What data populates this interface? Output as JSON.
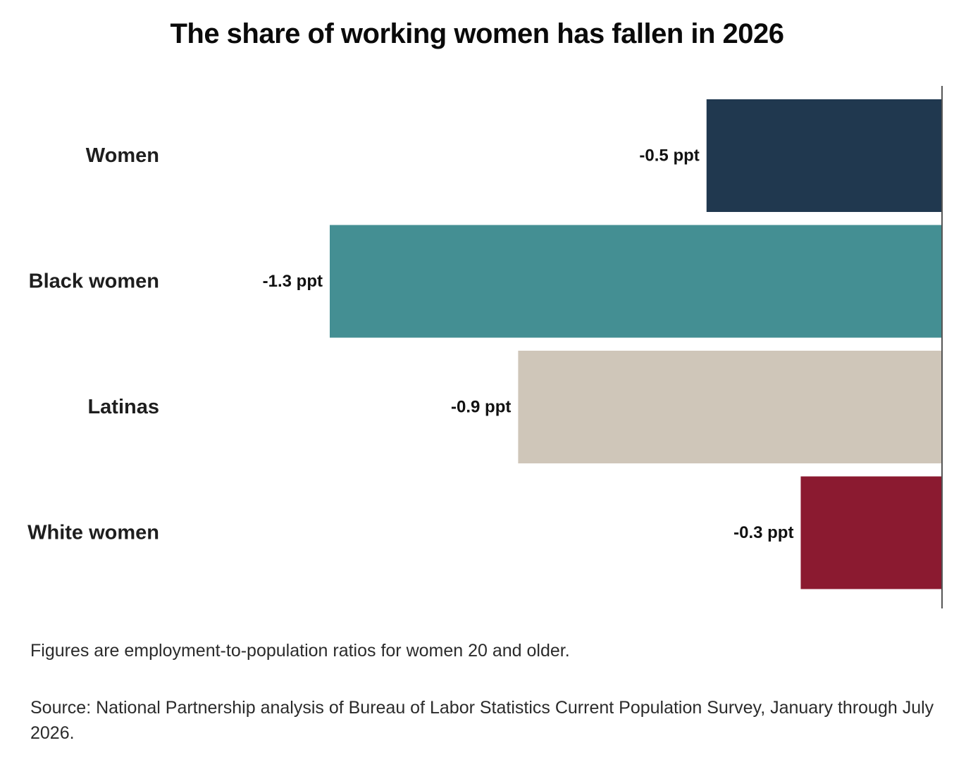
{
  "chart_data": {
    "type": "bar",
    "orientation": "horizontal",
    "title": "The share of working women has fallen in 2026",
    "categories": [
      "Women",
      "Black women",
      "Latinas",
      "White women"
    ],
    "values": [
      -0.5,
      -1.3,
      -0.9,
      -0.3
    ],
    "data_labels": [
      "-0.5 ppt",
      "-1.3 ppt",
      "-0.9 ppt",
      "-0.3 ppt"
    ],
    "colors": [
      "#20384f",
      "#448f93",
      "#cfc6b9",
      "#8b1a30"
    ],
    "unit": "ppt",
    "xlim": [
      -1.3,
      0
    ],
    "grid": false,
    "legend": "none"
  },
  "notes": {
    "ratio_note": "Figures are employment-to-population ratios for women 20 and older.",
    "source": "Source: National Partnership analysis of Bureau of Labor Statistics Current Population Survey, January through July 2026."
  }
}
